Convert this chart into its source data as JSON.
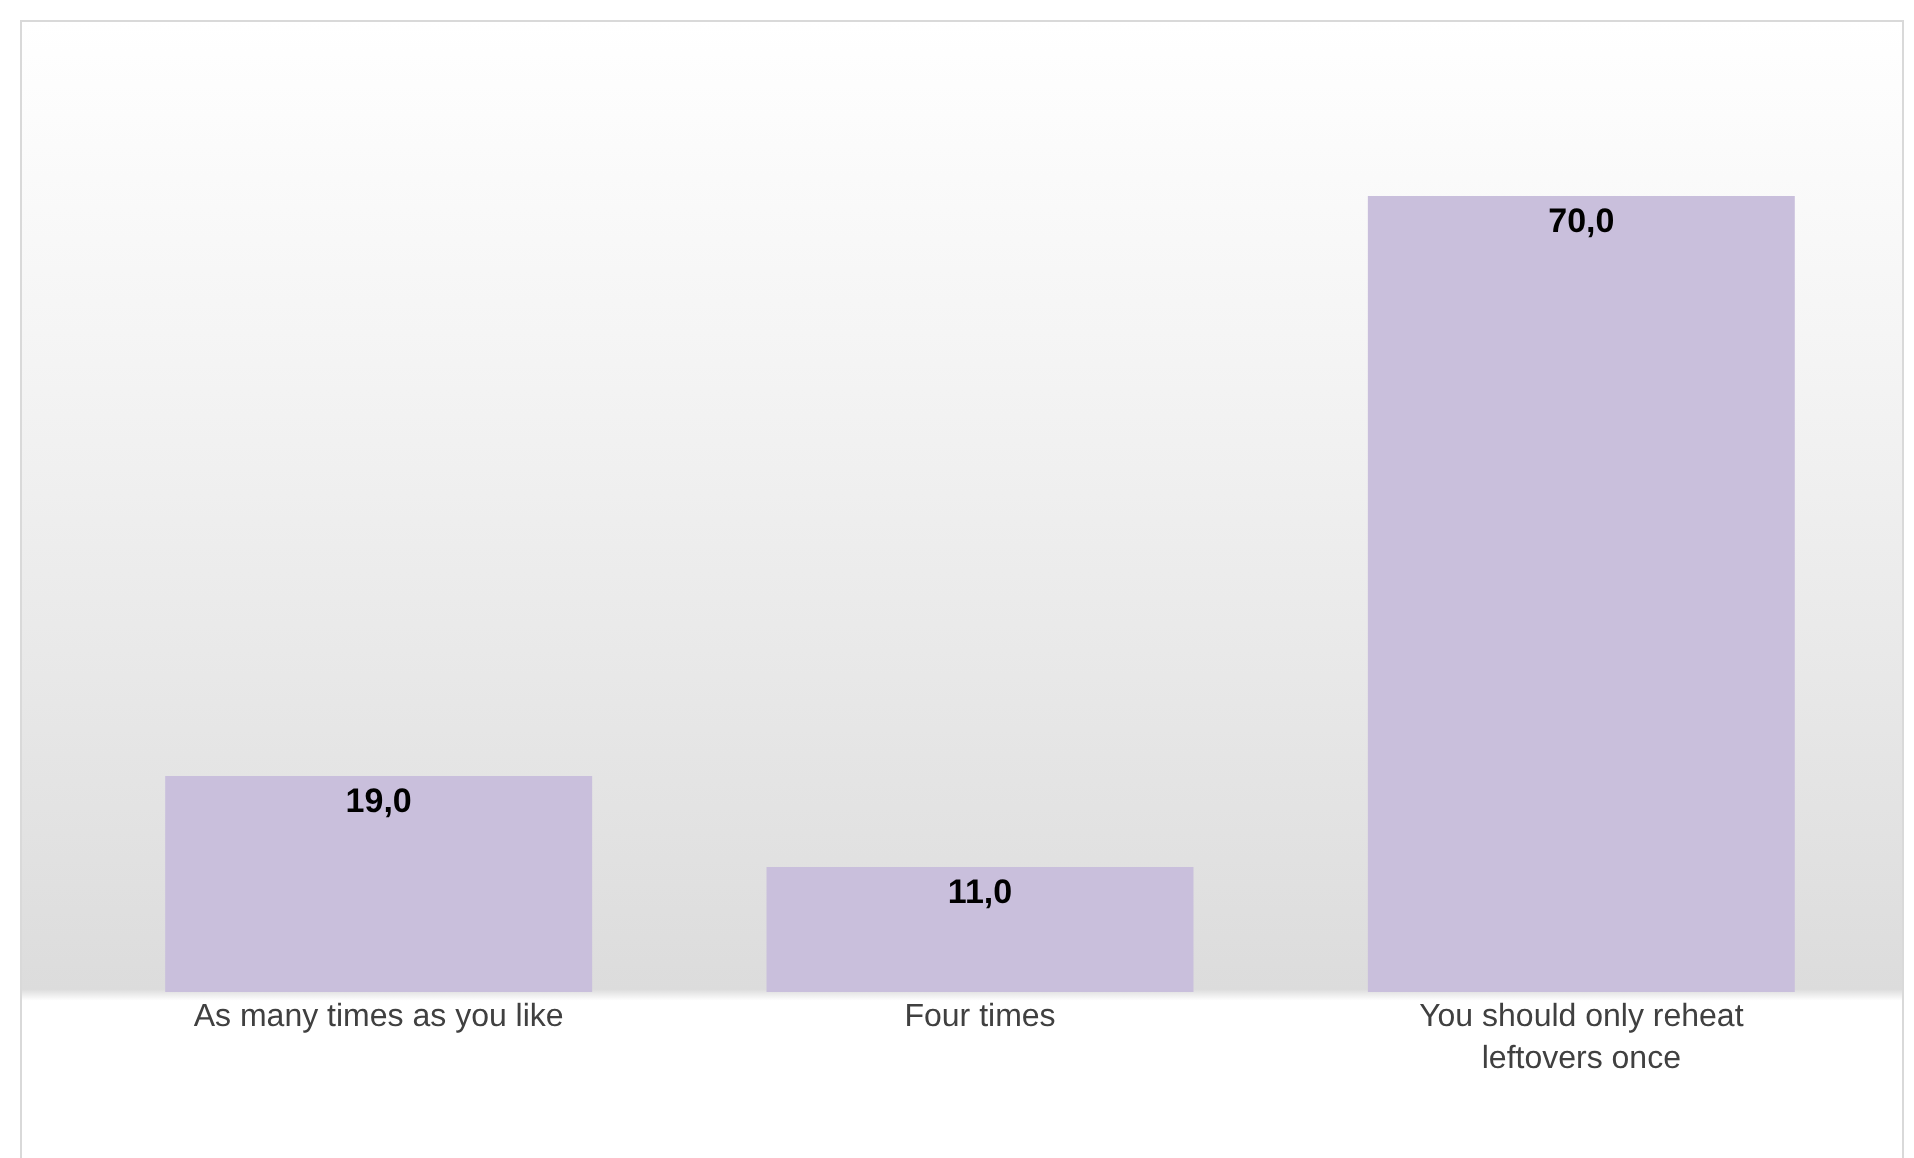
{
  "chart_data": {
    "type": "bar",
    "categories": [
      "As many times as you like",
      "Four times",
      "You should only reheat leftovers once"
    ],
    "values": [
      19,
      11,
      70
    ],
    "value_labels": [
      "19,0",
      "11,0",
      "70,0"
    ],
    "color": "#c9bfdc",
    "tick_labels": "x",
    "grid": false,
    "legend": false
  }
}
